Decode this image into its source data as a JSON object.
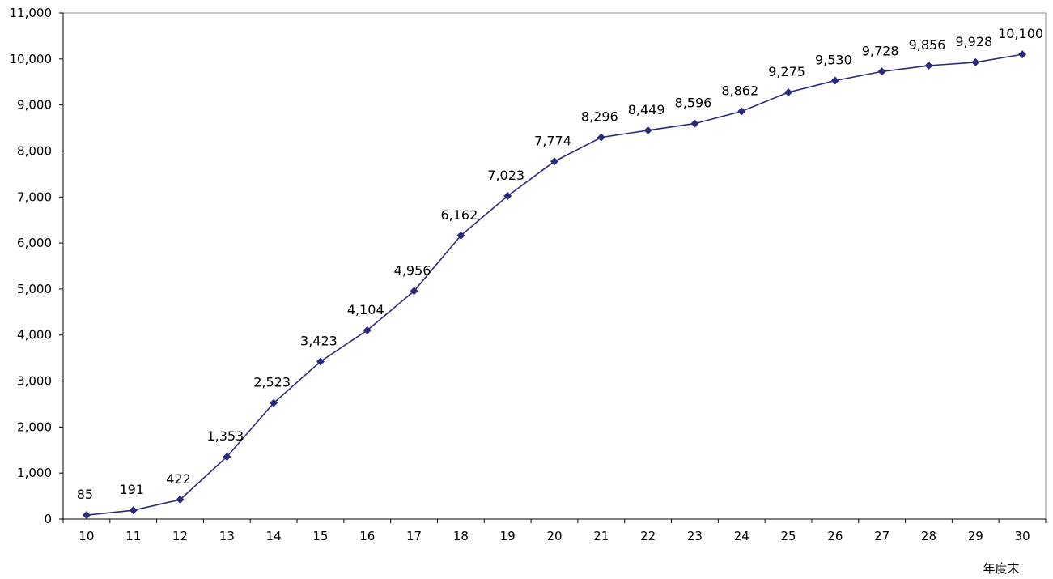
{
  "chart_data": {
    "type": "line",
    "title": "",
    "xlabel": "年度末",
    "ylabel": "",
    "x": [
      "10",
      "11",
      "12",
      "13",
      "14",
      "15",
      "16",
      "17",
      "18",
      "19",
      "20",
      "21",
      "22",
      "23",
      "24",
      "25",
      "26",
      "27",
      "28",
      "29",
      "30"
    ],
    "series": [
      {
        "values": [
          85,
          191,
          422,
          1353,
          2523,
          3423,
          4104,
          4956,
          6162,
          7023,
          7774,
          8296,
          8449,
          8596,
          8862,
          9275,
          9530,
          9728,
          9856,
          9928,
          10100
        ],
        "value_labels": [
          "85",
          "191",
          "422",
          "1,353",
          "2,523",
          "3,423",
          "4,104",
          "4,956",
          "6,162",
          "7,023",
          "7,774",
          "8,296",
          "8,449",
          "8,596",
          "8,862",
          "9,275",
          "9,530",
          "9,728",
          "9,856",
          "9,928",
          "10,100"
        ],
        "color": "#2a2a7a",
        "marker": "diamond"
      }
    ],
    "ylim": [
      0,
      11000
    ],
    "yticks": [
      0,
      1000,
      2000,
      3000,
      4000,
      5000,
      6000,
      7000,
      8000,
      9000,
      10000,
      11000
    ],
    "ytick_labels": [
      "0",
      "1,000",
      "2,000",
      "3,000",
      "4,000",
      "5,000",
      "6,000",
      "7,000",
      "8,000",
      "9,000",
      "10,000",
      "11,000"
    ],
    "grid": false,
    "legend": "none"
  }
}
